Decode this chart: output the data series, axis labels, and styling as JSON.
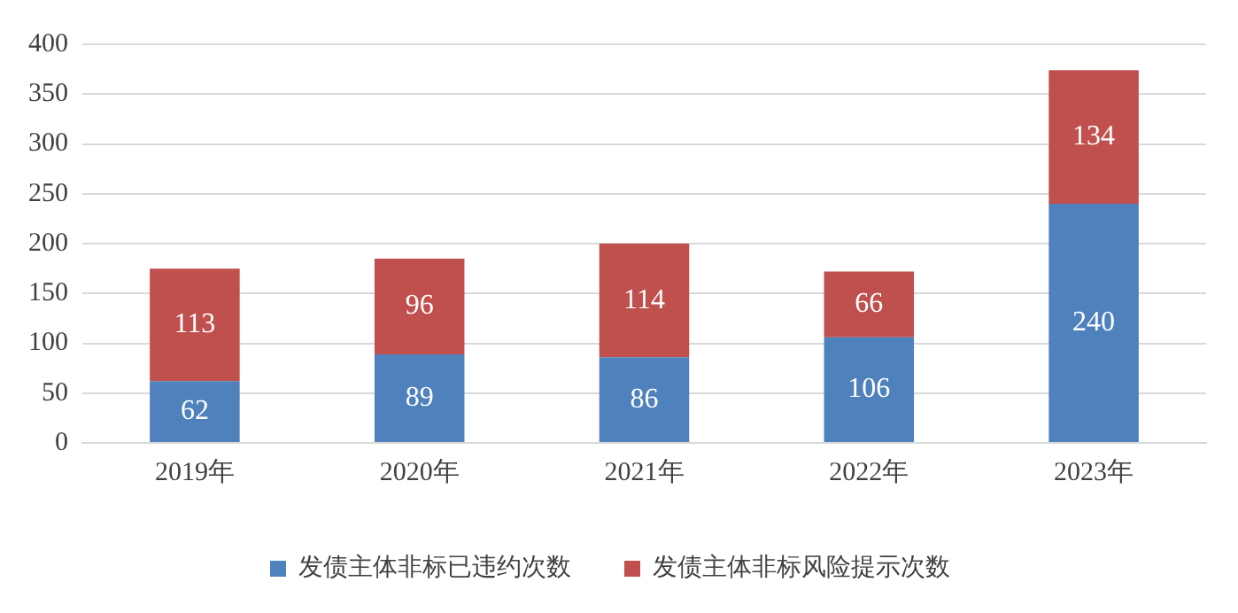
{
  "chart_data": {
    "type": "bar",
    "stacked": true,
    "categories": [
      "2019年",
      "2020年",
      "2021年",
      "2022年",
      "2023年"
    ],
    "series": [
      {
        "name": "发债主体非标已违约次数",
        "color": "#4f81bd",
        "values": [
          62,
          89,
          86,
          106,
          240
        ]
      },
      {
        "name": "发债主体非标风险提示次数",
        "color": "#c0504d",
        "values": [
          113,
          96,
          114,
          66,
          134
        ]
      }
    ],
    "ylim": [
      0,
      400
    ],
    "yticks": [
      0,
      50,
      100,
      150,
      200,
      250,
      300,
      350,
      400
    ],
    "grid": "y",
    "legend": "bottom",
    "data_labels": true
  }
}
